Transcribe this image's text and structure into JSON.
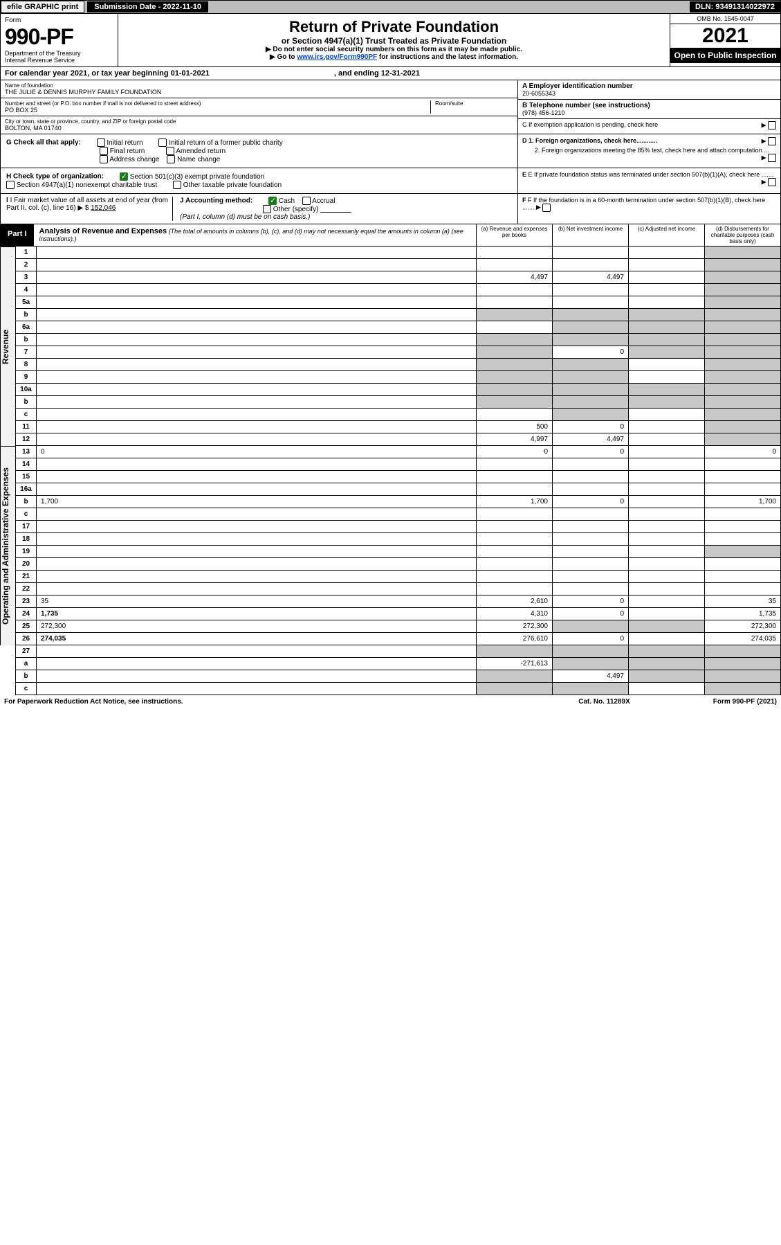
{
  "topbar": {
    "efile": "efile GRAPHIC print",
    "submission": "Submission Date - 2022-11-10",
    "dln": "DLN: 93491314022972"
  },
  "head": {
    "form_word": "Form",
    "form_no": "990-PF",
    "dept1": "Department of the Treasury",
    "dept2": "Internal Revenue Service",
    "title1": "Return of Private Foundation",
    "title2": "or Section 4947(a)(1) Trust Treated as Private Foundation",
    "note1": "▶ Do not enter social security numbers on this form as it may be made public.",
    "note2_pre": "▶ Go to ",
    "note2_link": "www.irs.gov/Form990PF",
    "note2_post": " for instructions and the latest information.",
    "omb": "OMB No. 1545-0047",
    "year": "2021",
    "open": "Open to Public Inspection"
  },
  "year_line": {
    "pre": "For calendar year 2021, or tax year beginning 01-01-2021",
    "post": ", and ending 12-31-2021"
  },
  "id": {
    "name_lab": "Name of foundation",
    "name_val": "THE JULIE & DENNIS MURPHY FAMILY FOUNDATION",
    "addr_lab": "Number and street (or P.O. box number if mail is not delivered to street address)",
    "addr_val": "PO BOX 25",
    "room_lab": "Room/suite",
    "city_lab": "City or town, state or province, country, and ZIP or foreign postal code",
    "city_val": "BOLTON, MA  01740",
    "a_lab": "A Employer identification number",
    "a_val": "20-6055343",
    "b_lab": "B Telephone number (see instructions)",
    "b_val": "(978) 456-1210",
    "c_lab": "C If exemption application is pending, check here"
  },
  "g": {
    "label": "G Check all that apply:",
    "opts": [
      "Initial return",
      "Initial return of a former public charity",
      "Final return",
      "Amended return",
      "Address change",
      "Name change"
    ]
  },
  "d": {
    "d1": "D 1. Foreign organizations, check here............",
    "d2": "2. Foreign organizations meeting the 85% test, check here and attach computation ...",
    "e": "E  If private foundation status was terminated under section 507(b)(1)(A), check here .......",
    "f": "F  If the foundation is in a 60-month termination under section 507(b)(1)(B), check here ........"
  },
  "h": {
    "label": "H Check type of organization:",
    "o1": "Section 501(c)(3) exempt private foundation",
    "o2": "Section 4947(a)(1) nonexempt charitable trust",
    "o3": "Other taxable private foundation"
  },
  "i": {
    "label": "I Fair market value of all assets at end of year (from Part II, col. (c), line 16) ▶ $",
    "val": "152,046"
  },
  "j": {
    "label": "J Accounting method:",
    "cash": "Cash",
    "accrual": "Accrual",
    "other": "Other (specify)",
    "note": "(Part I, column (d) must be on cash basis.)"
  },
  "part1": {
    "tag": "Part I",
    "title_b": "Analysis of Revenue and Expenses",
    "title_i": " (The total of amounts in columns (b), (c), and (d) may not necessarily equal the amounts in column (a) (see instructions).)",
    "ca": "(a)   Revenue and expenses per books",
    "cb": "(b)   Net investment income",
    "cc": "(c)   Adjusted net income",
    "cd": "(d)  Disbursements for charitable purposes (cash basis only)"
  },
  "sections": {
    "revenue": "Revenue",
    "opex": "Operating and Administrative Expenses"
  },
  "rows": [
    {
      "n": "1",
      "d": "",
      "a": "",
      "b": "",
      "c": "",
      "dg": true
    },
    {
      "n": "2",
      "d": "",
      "a": "",
      "b": "",
      "c": "",
      "dg": true,
      "bold_not": true
    },
    {
      "n": "3",
      "d": "",
      "a": "4,497",
      "b": "4,497",
      "c": "",
      "dg": true
    },
    {
      "n": "4",
      "d": "",
      "a": "",
      "b": "",
      "c": "",
      "dg": true
    },
    {
      "n": "5a",
      "d": "",
      "a": "",
      "b": "",
      "c": "",
      "dg": true
    },
    {
      "n": "b",
      "d": "",
      "a": "",
      "ag": true,
      "b": "",
      "bg": true,
      "c": "",
      "cg": true,
      "dg": true,
      "underline": true
    },
    {
      "n": "6a",
      "d": "",
      "a": "",
      "b": "",
      "bg": true,
      "c": "",
      "cg": true,
      "dg": true
    },
    {
      "n": "b",
      "d": "",
      "a": "",
      "ag": true,
      "b": "",
      "bg": true,
      "c": "",
      "cg": true,
      "dg": true,
      "underline": true
    },
    {
      "n": "7",
      "d": "",
      "a": "",
      "ag": true,
      "b": "0",
      "c": "",
      "cg": true,
      "dg": true
    },
    {
      "n": "8",
      "d": "",
      "a": "",
      "ag": true,
      "b": "",
      "bg": true,
      "c": "",
      "dg": true
    },
    {
      "n": "9",
      "d": "",
      "a": "",
      "ag": true,
      "b": "",
      "bg": true,
      "c": "",
      "dg": true
    },
    {
      "n": "10a",
      "d": "",
      "a": "",
      "ag": true,
      "b": "",
      "bg": true,
      "c": "",
      "cg": true,
      "dg": true,
      "underline": true
    },
    {
      "n": "b",
      "d": "",
      "a": "",
      "ag": true,
      "b": "",
      "bg": true,
      "c": "",
      "cg": true,
      "dg": true,
      "underline": true
    },
    {
      "n": "c",
      "d": "",
      "a": "",
      "b": "",
      "bg": true,
      "c": "",
      "dg": true
    },
    {
      "n": "11",
      "d": "",
      "a": "500",
      "b": "0",
      "c": "",
      "dg": true
    },
    {
      "n": "12",
      "d": "",
      "a": "4,997",
      "b": "4,497",
      "c": "",
      "dg": true,
      "bold": true
    }
  ],
  "rows2": [
    {
      "n": "13",
      "d": "0",
      "a": "0",
      "b": "0",
      "c": ""
    },
    {
      "n": "14",
      "d": "",
      "a": "",
      "b": "",
      "c": ""
    },
    {
      "n": "15",
      "d": "",
      "a": "",
      "b": "",
      "c": ""
    },
    {
      "n": "16a",
      "d": "",
      "a": "",
      "b": "",
      "c": ""
    },
    {
      "n": "b",
      "d": "1,700",
      "a": "1,700",
      "b": "0",
      "c": ""
    },
    {
      "n": "c",
      "d": "",
      "a": "",
      "b": "",
      "c": ""
    },
    {
      "n": "17",
      "d": "",
      "a": "",
      "b": "",
      "c": ""
    },
    {
      "n": "18",
      "d": "",
      "a": "",
      "b": "",
      "c": ""
    },
    {
      "n": "19",
      "d": "",
      "a": "",
      "b": "",
      "c": "",
      "dg": true
    },
    {
      "n": "20",
      "d": "",
      "a": "",
      "b": "",
      "c": ""
    },
    {
      "n": "21",
      "d": "",
      "a": "",
      "b": "",
      "c": ""
    },
    {
      "n": "22",
      "d": "",
      "a": "",
      "b": "",
      "c": ""
    },
    {
      "n": "23",
      "d": "35",
      "a": "2,610",
      "b": "0",
      "c": ""
    },
    {
      "n": "24",
      "d": "1,735",
      "a": "4,310",
      "b": "0",
      "c": "",
      "bold": true
    },
    {
      "n": "25",
      "d": "272,300",
      "a": "272,300",
      "b": "",
      "bg": true,
      "c": "",
      "cg": true
    },
    {
      "n": "26",
      "d": "274,035",
      "a": "276,610",
      "b": "0",
      "c": "",
      "bold": true
    }
  ],
  "rows3": [
    {
      "n": "27",
      "d": "",
      "a": "",
      "ag": true,
      "b": "",
      "bg": true,
      "c": "",
      "cg": true,
      "dg": true
    },
    {
      "n": "a",
      "d": "",
      "a": "-271,613",
      "b": "",
      "bg": true,
      "c": "",
      "cg": true,
      "dg": true,
      "bold": true
    },
    {
      "n": "b",
      "d": "",
      "a": "",
      "ag": true,
      "b": "4,497",
      "c": "",
      "cg": true,
      "dg": true,
      "bold": true
    },
    {
      "n": "c",
      "d": "",
      "a": "",
      "ag": true,
      "b": "",
      "bg": true,
      "c": "",
      "dg": true,
      "bold": true
    }
  ],
  "footer": {
    "l": "For Paperwork Reduction Act Notice, see instructions.",
    "m": "Cat. No. 11289X",
    "r": "Form 990-PF (2021)"
  }
}
